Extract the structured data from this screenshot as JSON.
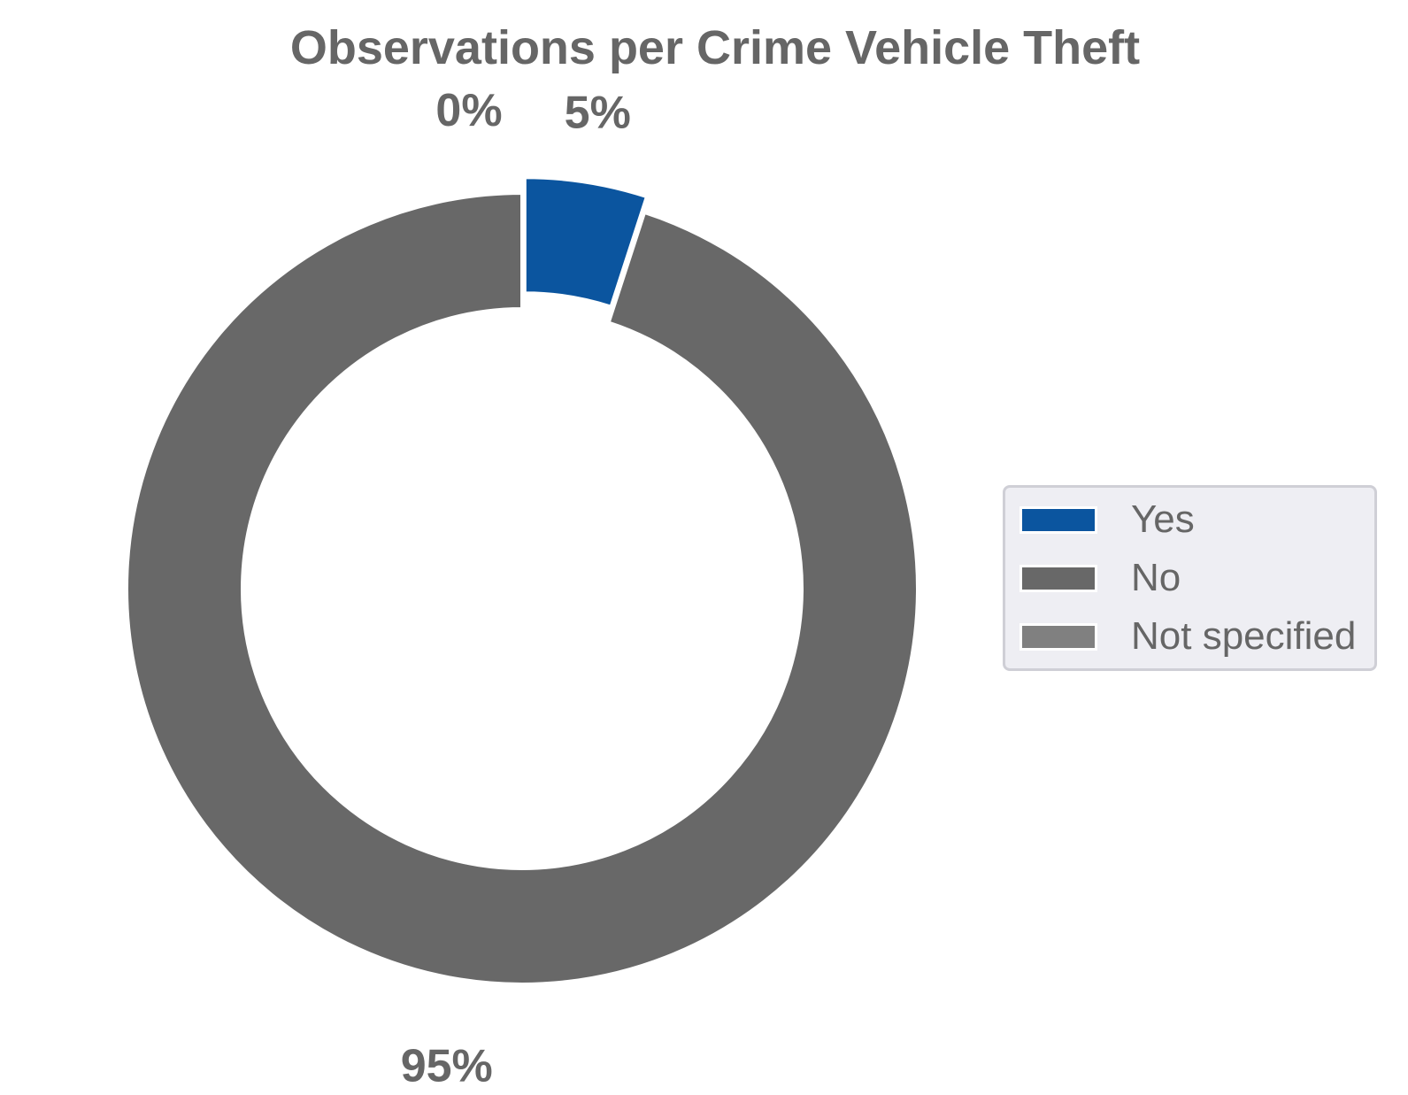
{
  "chart_data": {
    "type": "pie",
    "title": "Observations per Crime Vehicle Theft",
    "labels": [
      "Yes",
      "No",
      "Not specified"
    ],
    "values": [
      5,
      95,
      0
    ],
    "value_labels": [
      "5%",
      "95%",
      "0%"
    ],
    "colors": [
      "#0b559f",
      "#686868",
      "#808080"
    ],
    "donut": true,
    "exploded": [
      true,
      false,
      false
    ],
    "legend_position": "right"
  }
}
